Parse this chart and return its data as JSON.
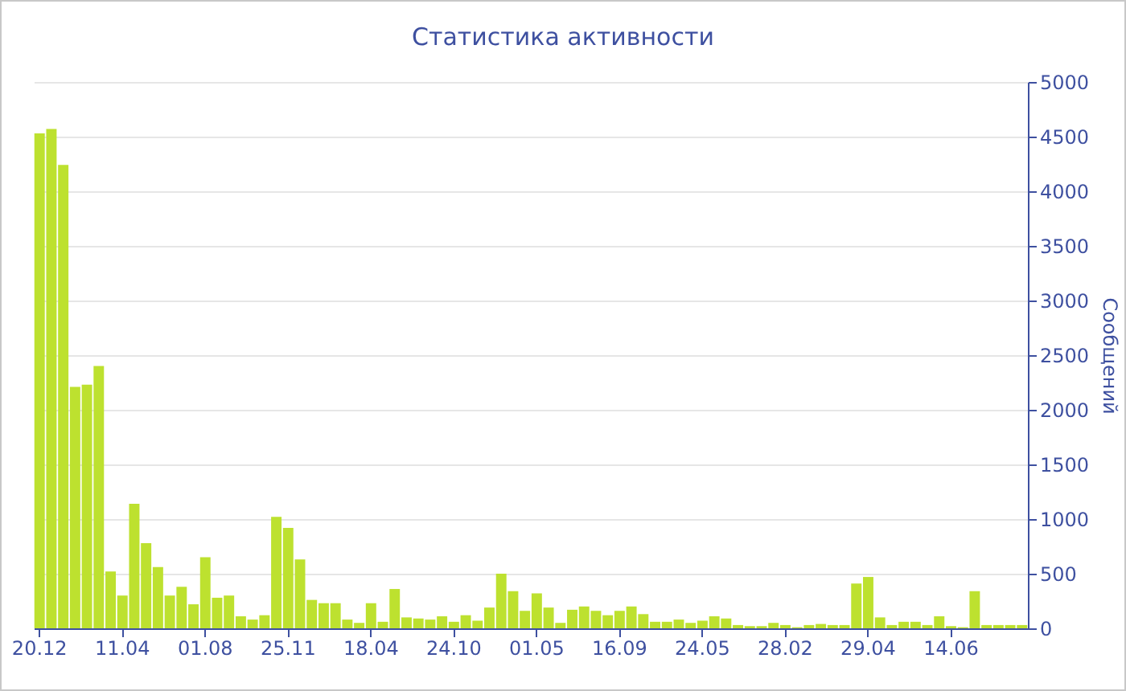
{
  "chart_data": {
    "type": "bar",
    "title": "Статистика активности",
    "ylabel": "Сообщений",
    "categories": [
      "20.12",
      null,
      null,
      null,
      null,
      null,
      null,
      "11.04",
      null,
      null,
      null,
      null,
      null,
      null,
      "01.08",
      null,
      null,
      null,
      null,
      null,
      null,
      "25.11",
      null,
      null,
      null,
      null,
      null,
      null,
      "18.04",
      null,
      null,
      null,
      null,
      null,
      null,
      "24.10",
      null,
      null,
      null,
      null,
      null,
      null,
      "01.05",
      null,
      null,
      null,
      null,
      null,
      null,
      "16.09",
      null,
      null,
      null,
      null,
      null,
      null,
      "24.05",
      null,
      null,
      null,
      null,
      null,
      null,
      "28.02",
      null,
      null,
      null,
      null,
      null,
      null,
      "29.04",
      null,
      null,
      null,
      null,
      null,
      null,
      "14.06",
      null,
      null,
      null,
      null,
      null,
      null
    ],
    "values": [
      4530,
      4570,
      4240,
      2210,
      2230,
      2400,
      520,
      300,
      1140,
      780,
      560,
      300,
      380,
      220,
      650,
      280,
      300,
      110,
      80,
      120,
      1020,
      920,
      630,
      260,
      230,
      230,
      80,
      50,
      230,
      60,
      360,
      100,
      90,
      80,
      110,
      60,
      120,
      70,
      190,
      500,
      340,
      160,
      320,
      190,
      50,
      170,
      200,
      160,
      120,
      160,
      200,
      130,
      60,
      60,
      80,
      50,
      70,
      110,
      90,
      30,
      20,
      20,
      50,
      30,
      10,
      30,
      40,
      30,
      30,
      410,
      470,
      100,
      30,
      60,
      60,
      30,
      110,
      20,
      10,
      340,
      30,
      30,
      30,
      30
    ],
    "color": "#bde12f",
    "ylim": [
      0,
      5000
    ],
    "yticks": [
      0,
      500,
      1000,
      1500,
      2000,
      2500,
      3000,
      3500,
      4000,
      4500,
      5000
    ],
    "grid": true
  }
}
